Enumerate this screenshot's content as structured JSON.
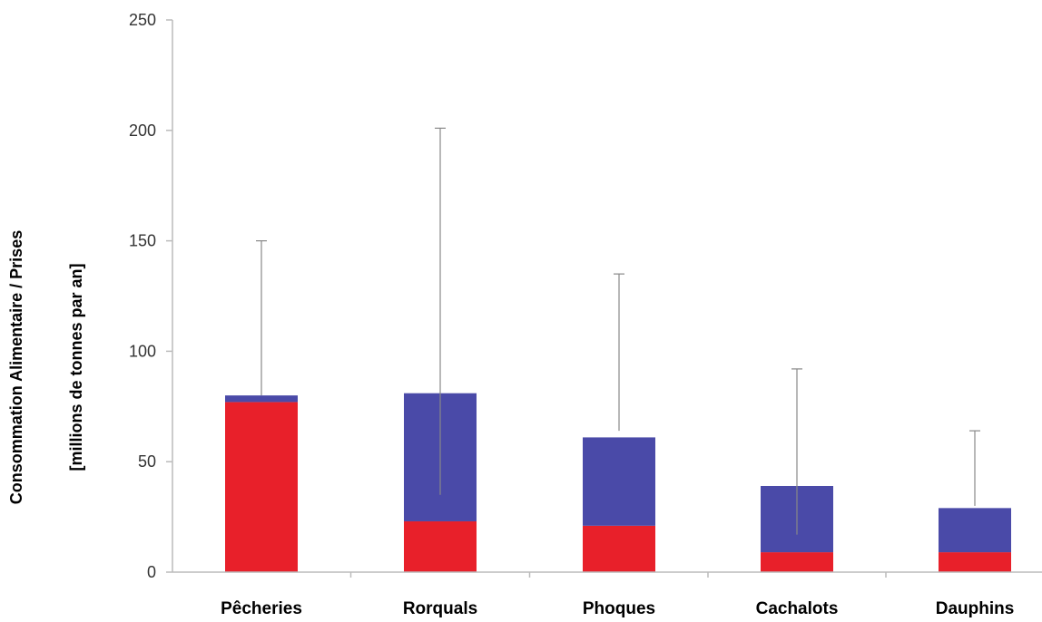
{
  "chart_data": {
    "type": "bar",
    "stacked": true,
    "categories": [
      "Pêcheries",
      "Rorquals",
      "Phoques",
      "Cachalots",
      "Dauphins"
    ],
    "series": [
      {
        "color": "#e8202a",
        "values": [
          77,
          23,
          21,
          9,
          9
        ]
      },
      {
        "color": "#4a4aa8",
        "values": [
          3,
          58,
          40,
          30,
          20
        ]
      }
    ],
    "error_bars": [
      {
        "low": 80,
        "high": 150
      },
      {
        "low": 35,
        "high": 201
      },
      {
        "low": 64,
        "high": 135
      },
      {
        "low": 17,
        "high": 92
      },
      {
        "low": 30,
        "high": 64
      }
    ],
    "ylabel_line1": "Consommation Alimentaire / Prises",
    "ylabel_line2": "[millions de tonnes par an]",
    "xlabel": "",
    "ylim": [
      0,
      250
    ],
    "yticks": [
      "0",
      "50",
      "100",
      "150",
      "200",
      "250"
    ],
    "grid": false,
    "legend": "none",
    "axis_color": "#bbbbbb",
    "error_color": "#888888"
  }
}
